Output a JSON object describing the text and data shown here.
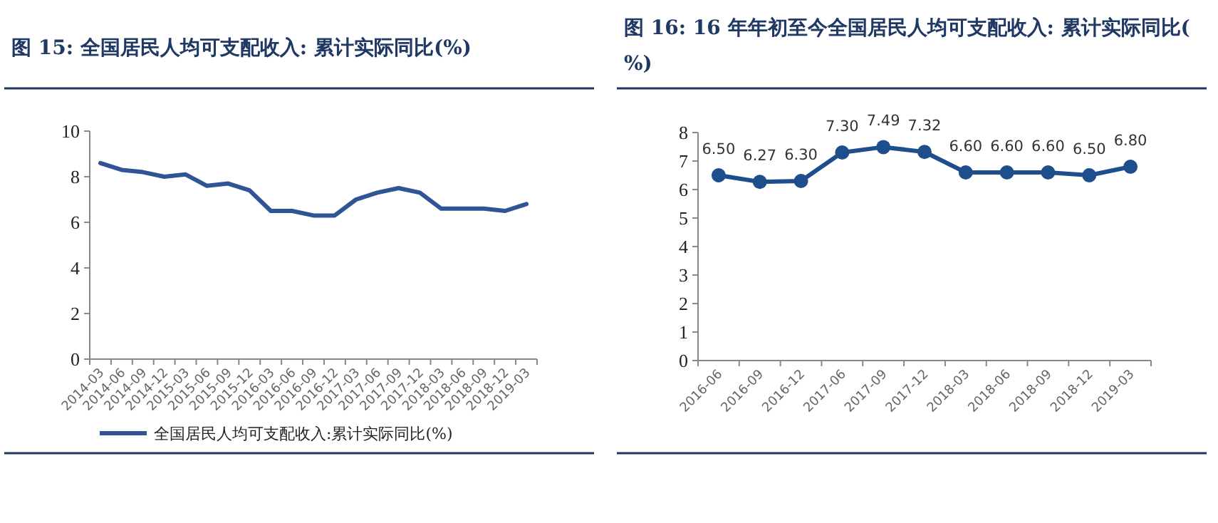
{
  "chart_data": [
    {
      "type": "line",
      "title": "图 15: 全国居民人均可支配收入: 累计实际同比(%)",
      "categories": [
        "2014-03",
        "2014-06",
        "2014-09",
        "2014-12",
        "2015-03",
        "2015-06",
        "2015-09",
        "2015-12",
        "2016-03",
        "2016-06",
        "2016-09",
        "2016-12",
        "2017-03",
        "2017-06",
        "2017-09",
        "2017-12",
        "2018-03",
        "2018-06",
        "2018-09",
        "2018-12",
        "2019-03"
      ],
      "series": [
        {
          "name": "全国居民人均可支配收入:累计实际同比(%)",
          "color": "#2f5597",
          "values": [
            8.6,
            8.3,
            8.2,
            8.0,
            8.1,
            7.6,
            7.7,
            7.4,
            6.5,
            6.5,
            6.3,
            6.3,
            7.0,
            7.3,
            7.5,
            7.3,
            6.6,
            6.6,
            6.6,
            6.5,
            6.8
          ]
        }
      ],
      "ylim": [
        0,
        10
      ],
      "yticks": [
        0,
        2,
        4,
        6,
        8,
        10
      ],
      "grid": false,
      "legend": "bottom",
      "marker": "none"
    },
    {
      "type": "line",
      "title": "图 16: 16 年年初至今全国居民人均可支配收入: 累计实际同比(%)",
      "categories": [
        "2016-06",
        "2016-09",
        "2016-12",
        "2017-06",
        "2017-09",
        "2017-12",
        "2018-03",
        "2018-06",
        "2018-09",
        "2018-12",
        "2019-03"
      ],
      "series": [
        {
          "color": "#1f4e8c",
          "values": [
            6.5,
            6.27,
            6.3,
            7.3,
            7.49,
            7.32,
            6.6,
            6.6,
            6.6,
            6.5,
            6.8
          ],
          "value_labels": [
            "6.50",
            "6.27",
            "6.30",
            "7.30",
            "7.49",
            "7.32",
            "6.60",
            "6.60",
            "6.60",
            "6.50",
            "6.80"
          ]
        }
      ],
      "ylim": [
        0,
        8
      ],
      "yticks": [
        0,
        1,
        2,
        3,
        4,
        5,
        6,
        7,
        8
      ],
      "grid": false,
      "legend": false,
      "marker": "circle"
    }
  ]
}
